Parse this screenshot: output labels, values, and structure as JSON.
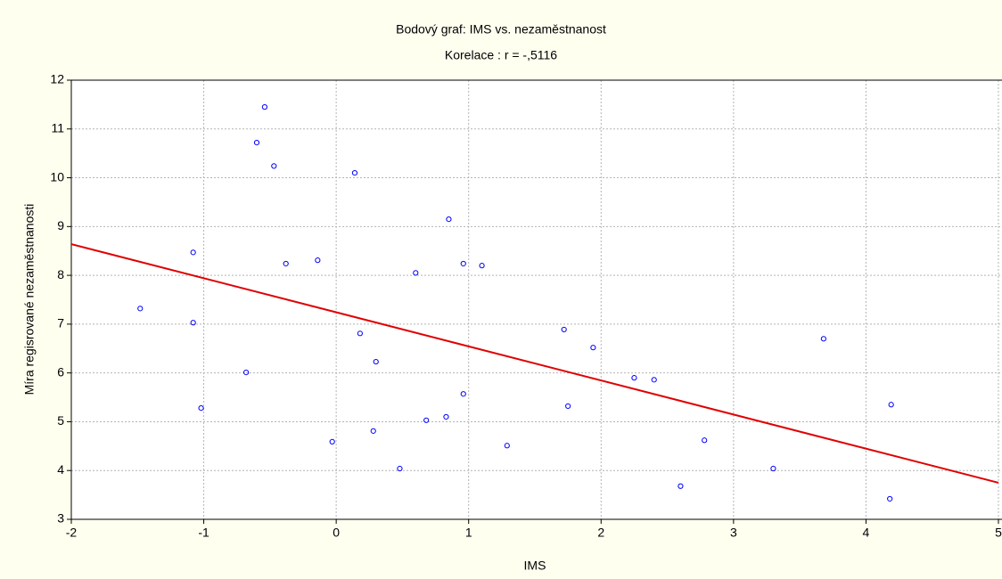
{
  "chart_data": {
    "type": "scatter",
    "title": "Bodový graf: IMS vs. nezaměstnanost",
    "subtitle": "Korelace : r = -,5116",
    "x_label": "IMS",
    "y_label": "Míra regisrované nezaměstnanosti",
    "xlim": [
      -2,
      5
    ],
    "ylim": [
      3,
      12
    ],
    "xticks": [
      -2,
      -1,
      0,
      1,
      2,
      3,
      4,
      5
    ],
    "yticks": [
      3,
      4,
      5,
      6,
      7,
      8,
      9,
      10,
      11,
      12
    ],
    "grid": true,
    "series": [
      {
        "color": "#0000ff",
        "x": [
          -0.54,
          -0.6,
          -0.47,
          0.14,
          0.85,
          -1.08,
          -0.38,
          -0.14,
          0.6,
          0.96,
          1.1,
          -1.48,
          -1.08,
          0.18,
          1.72,
          1.94,
          3.68,
          -0.68,
          0.3,
          2.25,
          2.4,
          -1.02,
          0.96,
          1.75,
          4.19,
          -0.03,
          0.28,
          0.68,
          0.83,
          1.29,
          0.48,
          2.78,
          2.6,
          3.3,
          4.18
        ],
        "values": [
          11.45,
          10.72,
          10.24,
          10.1,
          9.15,
          8.47,
          8.24,
          8.31,
          8.05,
          8.24,
          8.2,
          7.32,
          7.03,
          6.81,
          6.89,
          6.52,
          6.7,
          6.01,
          6.23,
          5.9,
          5.86,
          5.28,
          5.57,
          5.32,
          5.35,
          4.59,
          4.81,
          5.03,
          5.1,
          4.51,
          4.04,
          4.62,
          3.68,
          4.04,
          3.42
        ]
      }
    ],
    "trend": {
      "color": "#e00000",
      "x": [
        -2,
        5
      ],
      "values": [
        8.64,
        3.75
      ]
    }
  }
}
